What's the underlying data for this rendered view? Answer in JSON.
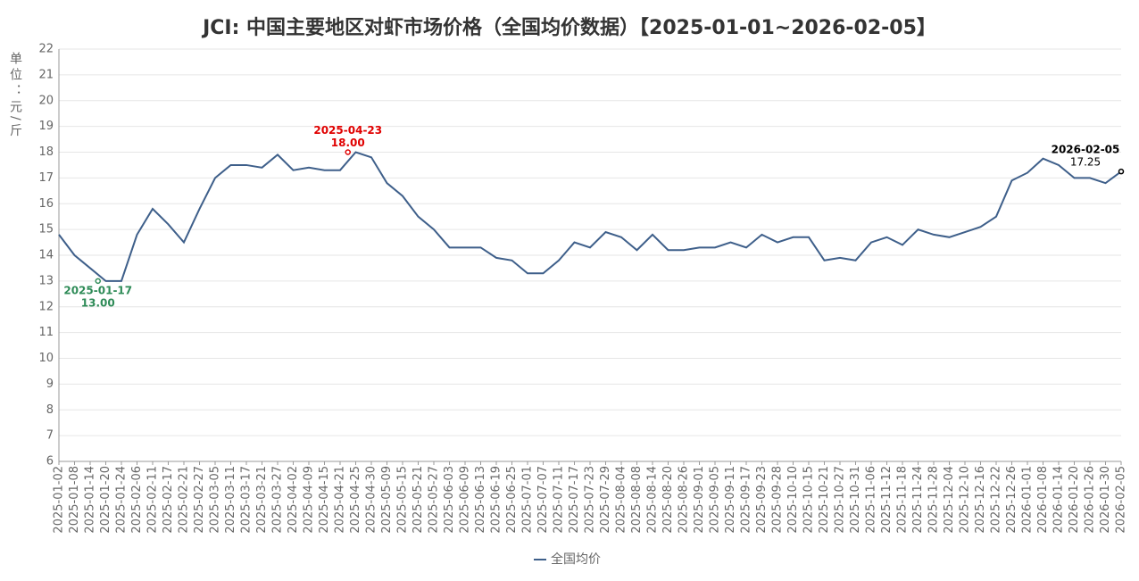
{
  "chart_data": {
    "type": "line",
    "title": "JCI: 中国主要地区对虾市场价格（全国均价数据）【2025-01-01~2026-02-05】",
    "y_label": "单位：元/斤",
    "categories": [
      "2025-01-02",
      "2025-01-08",
      "2025-01-14",
      "2025-01-20",
      "2025-01-24",
      "2025-02-06",
      "2025-02-11",
      "2025-02-17",
      "2025-02-21",
      "2025-02-27",
      "2025-03-05",
      "2025-03-11",
      "2025-03-17",
      "2025-03-21",
      "2025-03-27",
      "2025-04-02",
      "2025-04-09",
      "2025-04-15",
      "2025-04-21",
      "2025-04-25",
      "2025-04-30",
      "2025-05-09",
      "2025-05-15",
      "2025-05-21",
      "2025-05-27",
      "2025-06-03",
      "2025-06-09",
      "2025-06-13",
      "2025-06-19",
      "2025-06-25",
      "2025-07-01",
      "2025-07-07",
      "2025-07-11",
      "2025-07-17",
      "2025-07-23",
      "2025-07-29",
      "2025-08-04",
      "2025-08-08",
      "2025-08-14",
      "2025-08-20",
      "2025-08-26",
      "2025-09-01",
      "2025-09-05",
      "2025-09-11",
      "2025-09-17",
      "2025-09-23",
      "2025-09-28",
      "2025-10-10",
      "2025-10-15",
      "2025-10-21",
      "2025-10-27",
      "2025-10-31",
      "2025-11-06",
      "2025-11-12",
      "2025-11-18",
      "2025-11-24",
      "2025-11-28",
      "2025-12-04",
      "2025-12-10",
      "2025-12-16",
      "2025-12-22",
      "2025-12-26",
      "2026-01-01",
      "2026-01-08",
      "2026-01-14",
      "2026-01-20",
      "2026-01-26",
      "2026-01-30",
      "2026-02-05"
    ],
    "series": [
      {
        "name": "全国均价",
        "color": "#3e5f8a",
        "values": [
          14.8,
          14.0,
          13.5,
          13.0,
          13.0,
          14.8,
          15.8,
          15.2,
          14.5,
          15.8,
          17.0,
          17.5,
          17.5,
          17.4,
          17.9,
          17.3,
          17.4,
          17.3,
          17.3,
          18.0,
          17.8,
          16.8,
          16.3,
          15.5,
          15.0,
          14.3,
          14.3,
          14.3,
          13.9,
          13.8,
          13.3,
          13.3,
          13.8,
          14.5,
          14.3,
          14.9,
          14.7,
          14.2,
          14.8,
          14.2,
          14.2,
          14.3,
          14.3,
          14.5,
          14.3,
          14.8,
          14.5,
          14.7,
          14.7,
          13.8,
          13.9,
          13.8,
          14.5,
          14.7,
          14.4,
          15.0,
          14.8,
          14.7,
          14.9,
          15.1,
          15.5,
          16.9,
          17.2,
          17.75,
          17.5,
          17.0,
          17.0,
          16.8,
          17.25
        ]
      }
    ],
    "ylim": [
      6,
      22
    ],
    "yticks": [
      6,
      7,
      8,
      9,
      10,
      11,
      12,
      13,
      14,
      15,
      16,
      17,
      18,
      19,
      20,
      21,
      22
    ],
    "grid": true,
    "annotations": [
      {
        "date": "2025-01-17",
        "value": 13,
        "value_label": "13.00",
        "color": "#2e8b57"
      },
      {
        "date": "2025-04-23",
        "value": 18,
        "value_label": "18.00",
        "color": "#e00000"
      },
      {
        "date": "2026-02-05",
        "value": 17.25,
        "value_label": "17.25",
        "color": "#000000"
      }
    ]
  }
}
